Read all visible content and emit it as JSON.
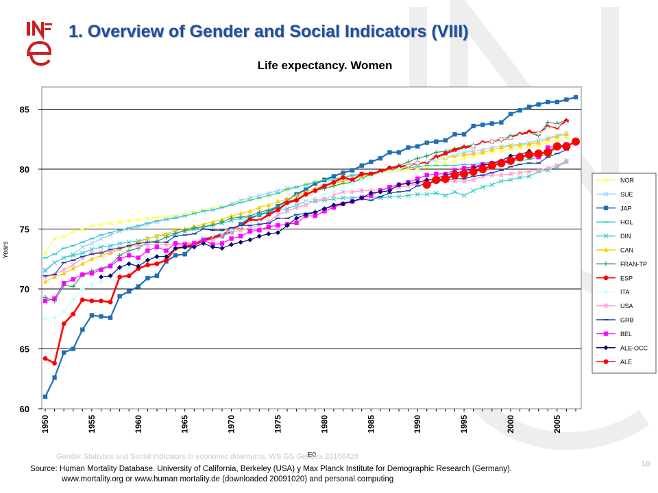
{
  "slide": {
    "title": "1. Overview of Gender and Social Indicators (VIII)",
    "logo_text": "INE",
    "footer_ghost": "Gender Statistics and Social Indicators in economic downturns. WS GS Geneva 20100426",
    "page_number": "10",
    "source_line1": "Source: Human Mortality Database. University of California, Berkeley (USA) y Max Planck Institute for Demographic Research (Germany).",
    "source_line2": "www.mortality.org or www.human  mortality.de (downloaded 20091020) and personal computing"
  },
  "chart_data": {
    "type": "line",
    "title": "Life expectancy. Women",
    "xlabel": "E0",
    "ylabel": "Years",
    "xlim": [
      1950,
      2007
    ],
    "ylim": [
      60,
      86
    ],
    "y_ticks": [
      60,
      65,
      70,
      75,
      80,
      85
    ],
    "x_ticks": [
      1950,
      1955,
      1960,
      1965,
      1970,
      1975,
      1980,
      1985,
      1990,
      1995,
      2000,
      2005
    ],
    "x_tick_labels": [
      "1950",
      "1955",
      "1960",
      "1965",
      "1970",
      "1975",
      "1980",
      "1985",
      "1990",
      "1995",
      "2000",
      "2005"
    ],
    "grid": "horizontal",
    "legend_position": "right",
    "series": [
      {
        "name": "NOR",
        "color": "#ffff66",
        "marker": "triangle",
        "start": 1950,
        "values": [
          73.0,
          74.2,
          74.4,
          74.8,
          75.0,
          75.3,
          75.4,
          75.5,
          75.6,
          75.7,
          75.8,
          75.9,
          76.0,
          76.0,
          76.1,
          76.3,
          76.5,
          76.6,
          76.8,
          76.9,
          77.1,
          77.3,
          77.5,
          77.6,
          77.8,
          78.0,
          78.2,
          78.5,
          78.8,
          79.0,
          79.2,
          79.3,
          79.4,
          79.5,
          79.6,
          79.6,
          79.7,
          79.8,
          79.9,
          80.0,
          80.1,
          80.2,
          80.4,
          80.5,
          80.7,
          80.9,
          81.1,
          81.3,
          81.4,
          81.5,
          81.7,
          81.8,
          81.9,
          82.0,
          82.2,
          82.5,
          82.7
        ]
      },
      {
        "name": "SUE",
        "color": "#99ccff",
        "marker": "x",
        "start": 1950,
        "values": [
          71.6,
          72.2,
          72.6,
          72.9,
          73.5,
          73.8,
          74.2,
          74.5,
          74.8,
          75.0,
          75.2,
          75.4,
          75.6,
          75.8,
          76.0,
          76.1,
          76.3,
          76.5,
          76.6,
          76.8,
          77.1,
          77.4,
          77.6,
          77.8,
          78.0,
          78.2,
          78.4,
          78.5,
          78.7,
          78.8,
          79.0,
          79.1,
          79.3,
          79.4,
          79.6,
          79.7,
          79.8,
          80.0,
          80.1,
          80.3,
          80.4,
          80.6,
          80.8,
          81.0,
          81.2,
          81.4,
          81.5,
          81.6,
          81.8,
          81.9,
          82.0,
          82.1,
          82.2,
          82.4,
          82.6,
          82.8,
          83.0
        ]
      },
      {
        "name": "JAP",
        "color": "#1f6fb8",
        "marker": "square",
        "start": 1950,
        "values": [
          61.0,
          62.6,
          64.7,
          65.0,
          66.6,
          67.8,
          67.7,
          67.6,
          69.4,
          69.8,
          70.2,
          70.9,
          71.1,
          72.3,
          72.8,
          72.9,
          73.7,
          74.2,
          74.3,
          74.4,
          74.8,
          75.4,
          75.9,
          76.2,
          76.4,
          76.9,
          77.4,
          77.9,
          78.3,
          78.8,
          79.1,
          79.4,
          79.7,
          79.9,
          80.3,
          80.6,
          80.9,
          81.4,
          81.4,
          81.8,
          81.9,
          82.2,
          82.3,
          82.4,
          82.9,
          82.9,
          83.6,
          83.7,
          83.8,
          83.9,
          84.6,
          84.9,
          85.2,
          85.4,
          85.6,
          85.6,
          85.8,
          86.0
        ]
      },
      {
        "name": "HOL",
        "color": "#33cccc",
        "marker": "dash",
        "start": 1950,
        "values": [
          72.6,
          72.9,
          73.4,
          73.6,
          73.9,
          74.2,
          74.5,
          74.7,
          74.9,
          75.1,
          75.3,
          75.5,
          75.7,
          75.8,
          75.9,
          76.1,
          76.3,
          76.5,
          76.6,
          76.8,
          77.0,
          77.2,
          77.4,
          77.6,
          77.8,
          78.0,
          78.3,
          78.5,
          78.7,
          78.9,
          79.1,
          79.2,
          79.3,
          79.5,
          79.6,
          79.7,
          79.8,
          79.9,
          80.0,
          80.1,
          80.2,
          80.3,
          80.3,
          80.3,
          80.3,
          80.4,
          80.4,
          80.5,
          80.6,
          80.6,
          80.7,
          80.7,
          80.8,
          81.0,
          81.3,
          81.7,
          82.2
        ]
      },
      {
        "name": "DIN",
        "color": "#33cccc",
        "marker": "x",
        "start": 1950,
        "values": [
          71.5,
          72.2,
          72.6,
          72.8,
          73.0,
          73.3,
          73.5,
          73.6,
          73.8,
          73.9,
          74.0,
          74.2,
          74.4,
          74.5,
          74.7,
          74.8,
          75.0,
          75.2,
          75.4,
          75.5,
          75.7,
          75.9,
          76.0,
          76.2,
          76.4,
          76.6,
          76.7,
          77.0,
          77.3,
          77.3,
          77.4,
          77.5,
          77.6,
          77.6,
          77.7,
          77.7,
          77.6,
          77.7,
          77.7,
          77.8,
          77.9,
          77.9,
          78.0,
          77.8,
          78.1,
          77.8,
          78.2,
          78.5,
          78.7,
          79.0,
          79.1,
          79.3,
          79.4,
          79.8,
          79.9,
          80.2,
          80.6
        ]
      },
      {
        "name": "CAN",
        "color": "#ffcc00",
        "marker": "triangle",
        "start": 1950,
        "values": [
          70.6,
          71.0,
          71.3,
          71.7,
          72.1,
          72.5,
          72.8,
          73.0,
          73.3,
          73.6,
          73.9,
          74.2,
          74.4,
          74.6,
          74.9,
          75.0,
          75.2,
          75.4,
          75.6,
          75.8,
          76.1,
          76.3,
          76.5,
          76.8,
          77.0,
          77.3,
          77.5,
          77.8,
          78.1,
          78.4,
          78.6,
          78.8,
          79.0,
          79.2,
          79.4,
          79.5,
          79.7,
          79.9,
          80.0,
          80.2,
          80.5,
          80.7,
          80.8,
          80.9,
          81.1,
          81.2,
          81.3,
          81.4,
          81.6,
          81.8,
          81.9,
          82.0,
          82.1,
          82.2,
          82.5,
          82.7,
          82.9
        ]
      },
      {
        "name": "FRAN-TP",
        "color": "#339966",
        "marker": "plus",
        "start": 1950,
        "values": [
          69.3,
          69.0,
          70.3,
          70.2,
          71.2,
          71.5,
          71.7,
          72.0,
          72.8,
          73.2,
          73.4,
          73.9,
          74.0,
          74.3,
          74.6,
          74.9,
          75.1,
          75.2,
          75.3,
          75.6,
          75.9,
          76.0,
          76.1,
          76.4,
          76.6,
          76.9,
          77.3,
          77.5,
          77.9,
          78.2,
          78.4,
          78.6,
          78.8,
          78.9,
          79.2,
          79.6,
          79.8,
          80.1,
          80.3,
          80.6,
          80.9,
          81.1,
          81.4,
          81.5,
          81.7,
          81.9,
          82.0,
          82.2,
          82.3,
          82.4,
          82.8,
          82.9,
          83.0,
          82.8,
          83.9,
          83.8,
          84.1
        ]
      },
      {
        "name": "ESP",
        "color": "#ff0000",
        "marker": "circle",
        "start": 1950,
        "values": [
          64.2,
          63.8,
          67.1,
          67.9,
          69.1,
          69.0,
          69.0,
          68.9,
          71.0,
          71.1,
          71.7,
          72.0,
          72.1,
          72.4,
          73.4,
          73.5,
          73.7,
          74.0,
          74.3,
          74.6,
          75.0,
          75.2,
          75.8,
          75.7,
          76.2,
          76.6,
          77.2,
          77.4,
          77.9,
          78.2,
          78.6,
          78.9,
          79.3,
          79.1,
          79.6,
          79.6,
          79.8,
          80.1,
          80.2,
          80.3,
          80.5,
          80.6,
          81.0,
          81.3,
          81.6,
          81.8,
          81.9,
          82.2,
          82.3,
          82.5,
          82.6,
          82.9,
          83.1,
          83.0,
          83.5,
          83.5,
          84.0
        ]
      },
      {
        "name": "ITA",
        "color": "#ccffff",
        "marker": "diamond",
        "start": 1950,
        "values": [
          67.5,
          67.6,
          68.1,
          69.1,
          70.0,
          70.4,
          70.6,
          71.1,
          71.5,
          71.9,
          72.3,
          72.6,
          72.7,
          72.9,
          73.5,
          73.7,
          73.8,
          74.3,
          74.5,
          74.7,
          74.9,
          75.2,
          75.5,
          75.6,
          75.9,
          76.1,
          76.4,
          76.8,
          77.2,
          77.6,
          77.9,
          78.1,
          78.5,
          78.8,
          79.1,
          79.3,
          79.6,
          79.8,
          80.0,
          80.3,
          80.5,
          80.7,
          80.8,
          81.0,
          81.3,
          81.6,
          81.9,
          82.1,
          82.3,
          82.5,
          82.6,
          82.8,
          82.9,
          83.0,
          83.4,
          83.6,
          83.8
        ]
      },
      {
        "name": "USA",
        "color": "#ff99cc",
        "marker": "asterisk",
        "start": 1950,
        "values": [
          71.0,
          71.2,
          71.6,
          72.0,
          72.6,
          73.0,
          73.1,
          73.1,
          73.4,
          73.6,
          73.6,
          73.7,
          73.7,
          73.7,
          73.8,
          73.8,
          73.9,
          74.0,
          74.1,
          74.4,
          74.7,
          74.9,
          75.1,
          75.3,
          75.6,
          76.2,
          76.5,
          76.8,
          77.0,
          77.4,
          77.5,
          77.8,
          78.1,
          78.1,
          78.2,
          78.2,
          78.3,
          78.4,
          78.5,
          78.6,
          78.8,
          79.0,
          79.1,
          78.9,
          79.0,
          79.0,
          79.1,
          79.4,
          79.5,
          79.5,
          79.6,
          79.7,
          79.8,
          79.9,
          80.1,
          80.3,
          80.7
        ]
      },
      {
        "name": "GRB",
        "color": "#1f3fa8",
        "marker": "dash",
        "start": 1950,
        "values": [
          71.1,
          71.2,
          72.2,
          72.4,
          72.7,
          72.9,
          73.0,
          73.3,
          73.4,
          73.6,
          73.8,
          73.9,
          73.9,
          73.9,
          74.4,
          74.5,
          74.6,
          75.0,
          74.9,
          74.9,
          75.1,
          75.3,
          75.3,
          75.4,
          75.5,
          75.9,
          75.9,
          76.2,
          76.3,
          76.4,
          76.7,
          76.9,
          77.2,
          77.3,
          77.5,
          77.4,
          77.7,
          78.0,
          78.1,
          78.2,
          78.6,
          78.8,
          79.0,
          79.1,
          79.2,
          79.2,
          79.4,
          79.5,
          79.7,
          79.9,
          80.2,
          80.4,
          80.5,
          80.5,
          81.0,
          81.3,
          81.6
        ]
      },
      {
        "name": "BEL",
        "color": "#ff00ff",
        "marker": "square",
        "start": 1950,
        "values": [
          69.0,
          69.2,
          70.5,
          70.8,
          71.2,
          71.3,
          71.6,
          71.9,
          72.5,
          72.8,
          72.6,
          73.2,
          73.5,
          73.2,
          73.8,
          73.7,
          73.8,
          74.1,
          73.7,
          73.8,
          74.2,
          74.4,
          74.8,
          74.9,
          75.2,
          75.3,
          75.4,
          75.5,
          76.1,
          76.1,
          76.5,
          76.8,
          77.1,
          77.3,
          77.6,
          77.8,
          78.2,
          78.5,
          78.7,
          78.9,
          79.2,
          79.5,
          79.6,
          79.6,
          79.9,
          80.1,
          80.2,
          80.4,
          80.5,
          80.6,
          80.8,
          81.1,
          81.2,
          81.0,
          81.8,
          81.9,
          82.0
        ]
      },
      {
        "name": "ALE-OCC",
        "color": "#0a0a6a",
        "marker": "diamond",
        "start": 1956,
        "values": [
          71.0,
          71.1,
          71.8,
          72.1,
          71.9,
          72.4,
          72.7,
          72.7,
          73.4,
          73.5,
          73.5,
          73.8,
          73.5,
          73.4,
          73.7,
          73.9,
          74.1,
          74.4,
          74.6,
          74.7,
          75.3,
          75.9,
          76.2,
          76.4,
          76.7,
          77.0,
          77.1,
          77.3,
          77.6,
          78.0,
          78.1,
          78.2,
          78.7,
          78.8,
          78.9,
          79.1,
          79.2,
          79.5,
          79.7,
          79.8,
          80.1,
          80.3,
          80.5,
          80.7,
          81.1,
          81.2,
          81.5
        ]
      },
      {
        "name": "ALE",
        "color": "#ff0000",
        "marker": "bigcircle",
        "start": 1991,
        "values": [
          78.7,
          79.1,
          79.2,
          79.5,
          79.6,
          79.8,
          80.0,
          80.3,
          80.5,
          80.7,
          81.0,
          81.2,
          81.3,
          81.4,
          81.9,
          81.9,
          82.3
        ]
      }
    ]
  }
}
